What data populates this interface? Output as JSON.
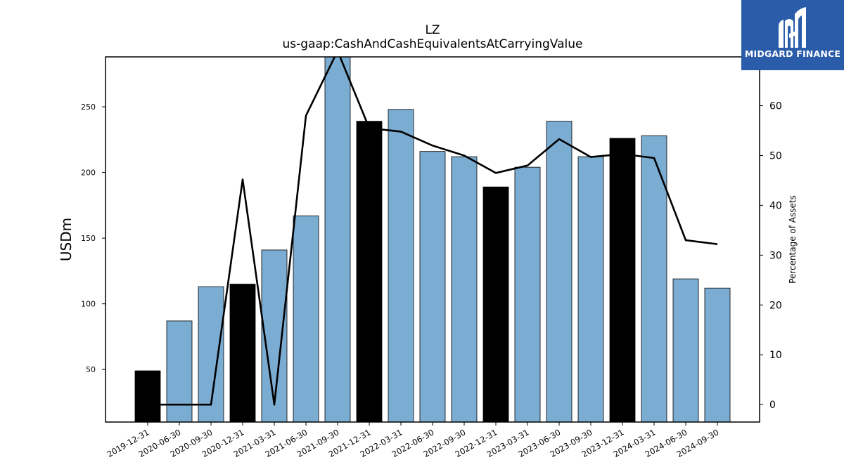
{
  "logo": {
    "text": "MIDGARD FINANCE",
    "background": "#2a5caa"
  },
  "chart_data": {
    "type": "bar",
    "title": "LZ",
    "subtitle": "us-gaap:CashAndCashEquivalentsAtCarryingValue",
    "ylabel": "USDm",
    "y2label": "Percentage of Assets",
    "ylim": [
      10,
      288
    ],
    "y2lim": [
      -3.5,
      69.8
    ],
    "yticks": [
      50,
      100,
      150,
      200,
      250
    ],
    "y2ticks": [
      0,
      10,
      20,
      30,
      40,
      50,
      60
    ],
    "categories": [
      "2019-12-31",
      "2020-06-30",
      "2020-09-30",
      "2020-12-31",
      "2021-03-31",
      "2021-06-30",
      "2021-09-30",
      "2021-12-31",
      "2022-03-31",
      "2022-06-30",
      "2022-09-30",
      "2022-12-31",
      "2023-03-31",
      "2023-06-30",
      "2023-09-30",
      "2023-12-31",
      "2024-03-31",
      "2024-06-30",
      "2024-09-30"
    ],
    "values": [
      49,
      87,
      113,
      115,
      141,
      167,
      289,
      239,
      248,
      216,
      212,
      189,
      204,
      239,
      212,
      226,
      228,
      119,
      112
    ],
    "year_end": [
      true,
      false,
      false,
      true,
      false,
      false,
      false,
      true,
      false,
      false,
      false,
      true,
      false,
      false,
      false,
      true,
      false,
      false,
      false
    ],
    "bar_color_year_end": "#000000",
    "bar_color_other": "#7bacd1",
    "line_series": {
      "name": "Percentage of Assets",
      "color": "#000000",
      "values": [
        0,
        0,
        0,
        45.2,
        0,
        58,
        71,
        55.5,
        54.8,
        52,
        50,
        46.5,
        48,
        53.3,
        49.7,
        50.3,
        49.5,
        33,
        32.2
      ]
    }
  }
}
